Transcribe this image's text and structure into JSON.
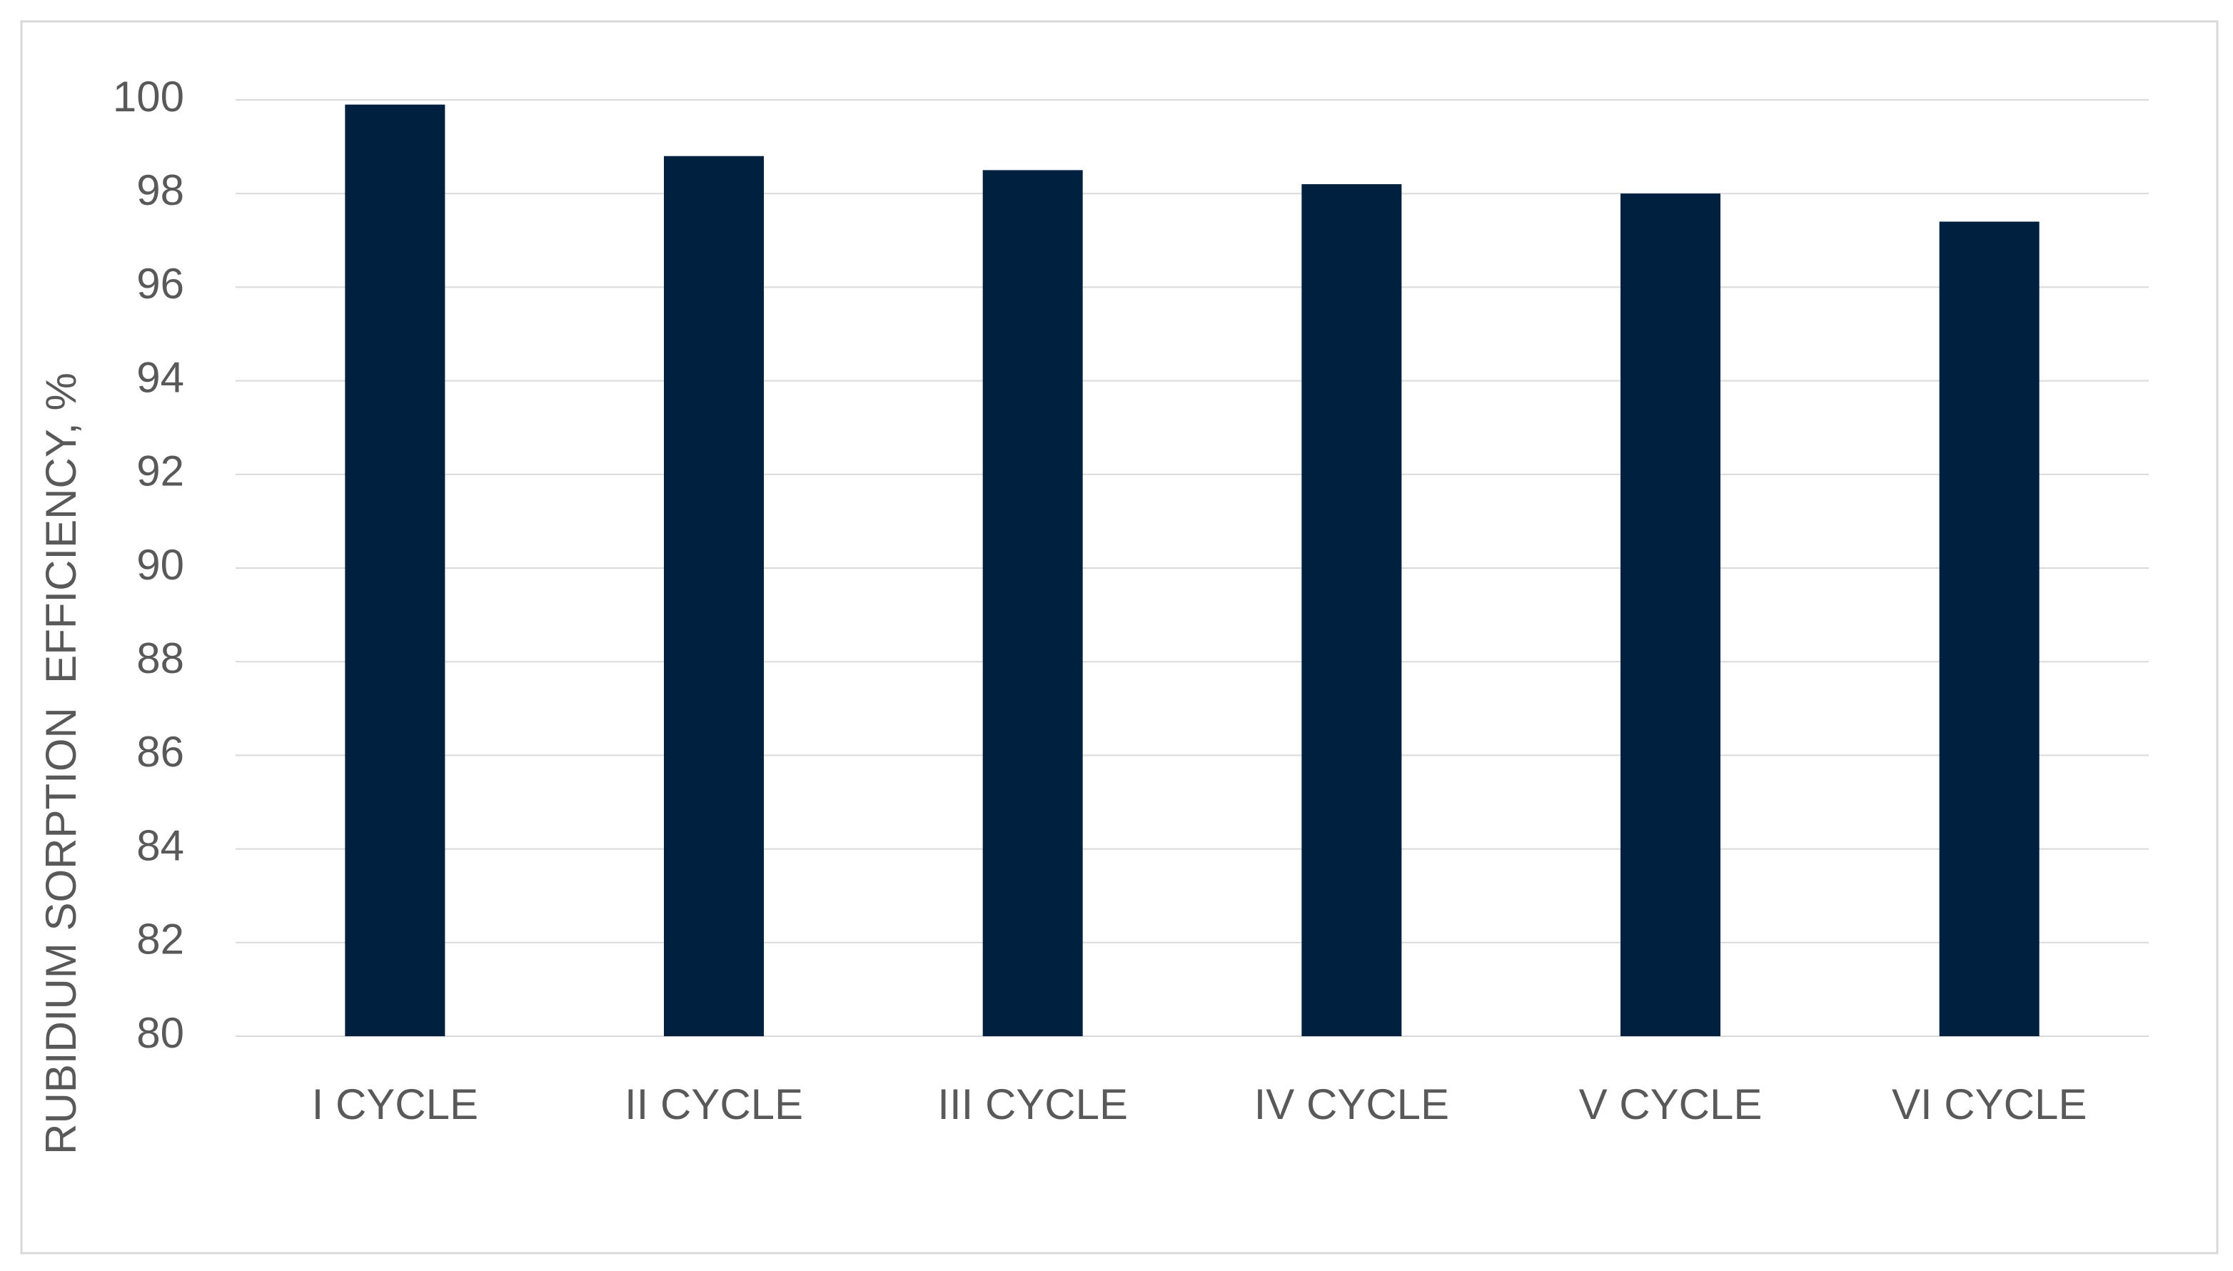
{
  "chart_data": {
    "type": "bar",
    "y_label": "RUBIDIUM SORPTION  EFFICIENCY, %",
    "categories": [
      "I CYCLE",
      "II CYCLE",
      "III CYCLE",
      "IV CYCLE",
      "V CYCLE",
      "VI CYCLE"
    ],
    "values": [
      99.9,
      98.8,
      98.5,
      98.2,
      98.0,
      97.4
    ],
    "color": "#00203f",
    "ylim": [
      80,
      100
    ],
    "yticks": [
      80,
      82,
      84,
      86,
      88,
      90,
      92,
      94,
      96,
      98,
      100
    ],
    "grid": true
  }
}
